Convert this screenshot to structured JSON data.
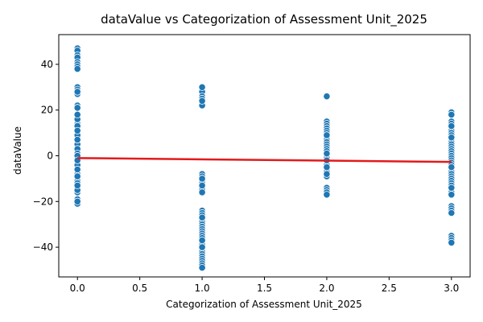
{
  "chart_data": {
    "type": "scatter",
    "title": "dataValue vs Categorization of Assessment Unit_2025",
    "xlabel": "Categorization of Assessment Unit_2025",
    "ylabel": "dataValue",
    "xlim": [
      -0.15,
      3.15
    ],
    "ylim": [
      -53,
      53
    ],
    "x_ticks": [
      0.0,
      0.5,
      1.0,
      1.5,
      2.0,
      2.5,
      3.0
    ],
    "x_tick_labels": [
      "0.0",
      "0.5",
      "1.0",
      "1.5",
      "2.0",
      "2.5",
      "3.0"
    ],
    "y_ticks": [
      -40,
      -20,
      0,
      20,
      40
    ],
    "y_tick_labels": [
      "−40",
      "−20",
      "0",
      "20",
      "40"
    ],
    "grid": false,
    "legend": "none",
    "colors": {
      "points": "#1f77b4",
      "point_edge": "#ffffff",
      "trend": "#e31a1c",
      "band": "#b8cde0"
    },
    "series": [
      {
        "x": [
          0,
          0,
          0,
          0,
          0,
          0,
          0,
          0,
          0,
          0,
          0,
          0,
          0,
          0,
          0,
          0,
          0,
          0,
          0,
          0,
          0,
          0,
          0,
          0,
          0,
          0,
          0,
          0,
          0,
          0,
          0,
          0,
          0,
          0,
          0,
          0,
          0,
          0,
          0,
          0,
          0,
          0,
          0,
          0,
          0,
          0,
          0,
          0,
          0,
          0,
          0,
          0,
          0,
          0,
          0,
          0,
          0,
          0,
          0,
          0,
          0,
          0,
          0,
          0,
          0,
          0,
          0,
          0,
          0,
          0
        ],
        "y": [
          47,
          46,
          44,
          43,
          41,
          40,
          39,
          38,
          30,
          29,
          28,
          27,
          22,
          21,
          16,
          15,
          14,
          13,
          12,
          11,
          10,
          9,
          8,
          7,
          6,
          5,
          4,
          3,
          2,
          1,
          0,
          -1,
          -2,
          -3,
          -4,
          -5,
          -6,
          -7,
          -8,
          -9,
          -10,
          -11,
          -12,
          -14,
          -15,
          -16,
          -19,
          -20,
          -21,
          28,
          21,
          16,
          13,
          9,
          5,
          2,
          -1,
          -4,
          -6,
          -9,
          -15,
          -20,
          3,
          1,
          0,
          -2,
          7,
          11,
          18,
          -13
        ]
      },
      {
        "x": [
          1,
          1,
          1,
          1,
          1,
          1,
          1,
          1,
          1,
          1,
          1,
          1,
          1,
          1,
          1,
          1,
          1,
          1,
          1,
          1,
          1,
          1,
          1,
          1,
          1,
          1,
          1,
          1,
          1,
          1,
          1,
          1,
          1,
          1,
          1,
          1,
          1,
          1,
          1,
          1,
          1,
          1,
          1,
          1,
          1,
          1,
          1,
          1,
          1,
          1
        ],
        "y": [
          30,
          29,
          28,
          26,
          25,
          24,
          23,
          22,
          -8,
          -9,
          -10,
          -11,
          -12,
          -13,
          -14,
          -15,
          -16,
          -24,
          -25,
          -26,
          -27,
          -28,
          -29,
          -30,
          -31,
          -32,
          -33,
          -34,
          -35,
          -36,
          -37,
          -38,
          -39,
          -40,
          -41,
          -42,
          -43,
          -44,
          -45,
          -46,
          -47,
          -48,
          -49,
          30,
          24,
          -10,
          -13,
          -27,
          -37,
          -40
        ]
      },
      {
        "x": [
          2,
          2,
          2,
          2,
          2,
          2,
          2,
          2,
          2,
          2,
          2,
          2,
          2,
          2,
          2,
          2,
          2,
          2,
          2,
          2,
          2,
          2,
          2,
          2,
          2,
          2,
          2,
          2,
          2,
          2,
          2,
          2,
          2,
          2,
          2
        ],
        "y": [
          26,
          15,
          14,
          13,
          12,
          11,
          10,
          9,
          8,
          7,
          6,
          5,
          4,
          3,
          2,
          1,
          0,
          -1,
          -2,
          -3,
          -4,
          -5,
          -6,
          -7,
          -8,
          -9,
          -14,
          -15,
          -16,
          -17,
          9,
          1,
          -2,
          -5,
          -8
        ]
      },
      {
        "x": [
          3,
          3,
          3,
          3,
          3,
          3,
          3,
          3,
          3,
          3,
          3,
          3,
          3,
          3,
          3,
          3,
          3,
          3,
          3,
          3,
          3,
          3,
          3,
          3,
          3,
          3,
          3,
          3,
          3,
          3,
          3,
          3,
          3,
          3,
          3,
          3,
          3,
          3,
          3,
          3,
          3,
          3,
          3,
          3,
          3,
          3,
          3
        ],
        "y": [
          19,
          18,
          15,
          14,
          13,
          12,
          11,
          10,
          9,
          8,
          7,
          6,
          5,
          4,
          3,
          2,
          1,
          0,
          -1,
          -2,
          -3,
          -4,
          -5,
          -6,
          -7,
          -8,
          -9,
          -10,
          -11,
          -12,
          -13,
          -14,
          -15,
          -16,
          -17,
          -22,
          -23,
          -24,
          -25,
          -35,
          -36,
          -37,
          -38,
          13,
          8,
          -5,
          -14
        ]
      }
    ],
    "trend": {
      "x": [
        0,
        3
      ],
      "y": [
        -1,
        -2.7
      ]
    }
  }
}
